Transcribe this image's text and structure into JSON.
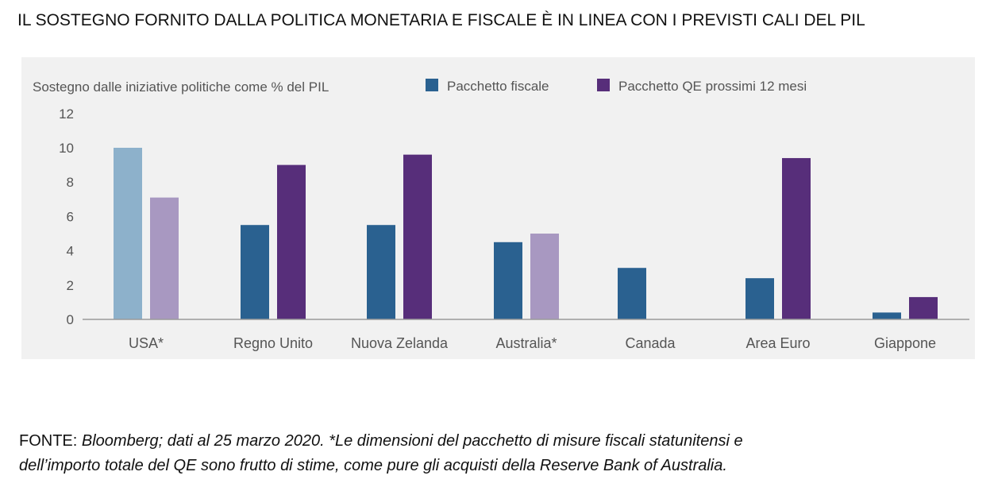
{
  "title": "IL SOSTEGNO FORNITO DALLA POLITICA MONETARIA E FISCALE È IN LINEA CON I PREVISTI CALI DEL PIL",
  "chart_data": {
    "type": "bar",
    "ylabel": "Sostegno dalle iniziative politiche come % del PIL",
    "ylim": [
      0,
      12
    ],
    "yticks": [
      "0",
      "2",
      "4",
      "6",
      "8",
      "10",
      "12"
    ],
    "categories": [
      "USA*",
      "Regno Unito",
      "Nuova Zelanda",
      "Australia*",
      "Canada",
      "Area Euro",
      "Giappone"
    ],
    "series": [
      {
        "name": "Pacchetto fiscale",
        "color": "#2a6190",
        "estimated_color": "#8db1cb",
        "values": [
          10.0,
          5.5,
          5.5,
          4.5,
          3.0,
          2.4,
          0.4
        ],
        "estimated": [
          true,
          false,
          false,
          false,
          false,
          false,
          false
        ]
      },
      {
        "name": "Pacchetto QE prossimi 12 mesi",
        "color": "#572e7a",
        "estimated_color": "#a898c1",
        "values": [
          7.1,
          9.0,
          9.6,
          5.0,
          null,
          9.4,
          1.3
        ],
        "estimated": [
          true,
          false,
          false,
          true,
          false,
          false,
          false
        ]
      }
    ],
    "legend_position": "top",
    "grid": false
  },
  "source": {
    "label": "FONTE: ",
    "line1": "Bloomberg; dati al 25 marzo 2020. *Le dimensioni del pacchetto di misure fiscali statunitensi e",
    "line2": "dell’importo totale del QE sono frutto di stime, come pure gli acquisti della Reserve Bank of Australia."
  }
}
